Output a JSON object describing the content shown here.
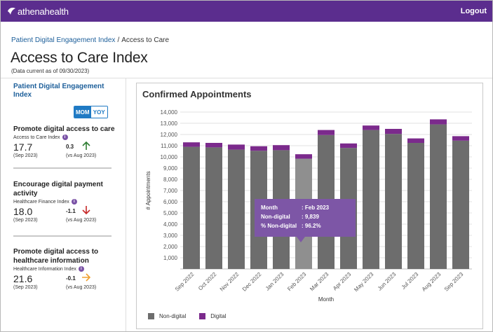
{
  "header": {
    "brand": "athenahealth",
    "logout_label": "Logout"
  },
  "breadcrumb": {
    "parent": "Patient Digital Engagement Index",
    "separator": "/",
    "current": "Access to Care"
  },
  "page": {
    "title": "Access to Care Index",
    "subtitle": "(Data current as of 09/30/2023)"
  },
  "sidebar": {
    "title": "Patient Digital Engagement Index",
    "toggle": {
      "mom": "MOM",
      "yoy": "YOY",
      "selected": "MOM"
    },
    "metrics": [
      {
        "title": "Promote digital access to care",
        "index_label": "Access to Care Index",
        "value": "17.7",
        "period": "(Sep 2023)",
        "delta": "0.3",
        "vs": "(vs Aug 2023)",
        "direction": "up",
        "arrow_color": "#2e7d32"
      },
      {
        "title": "Encourage digital payment activity",
        "index_label": "Healthcare Finance Index",
        "value": "18.0",
        "period": "(Sep 2023)",
        "delta": "-1.1",
        "vs": "(vs Aug 2023)",
        "direction": "down",
        "arrow_color": "#c62828"
      },
      {
        "title": "Promote digital access to healthcare information",
        "index_label": "Healthcare Information Index",
        "value": "21.6",
        "period": "(Sep 2023)",
        "delta": "-0.1",
        "vs": "(vs Aug 2023)",
        "direction": "right",
        "arrow_color": "#f0a030"
      }
    ]
  },
  "chart": {
    "title": "Confirmed Appointments",
    "legend": [
      "Non-digital",
      "Digital"
    ],
    "tooltip": {
      "rows": [
        {
          "key": "Month",
          "value": ": Feb 2023"
        },
        {
          "key": "Non-digital",
          "value": ": 9,839"
        },
        {
          "key": "% Non-digital",
          "value": ": 96.2%"
        }
      ]
    }
  },
  "chart_data": {
    "type": "bar",
    "stacked": true,
    "xlabel": "Month",
    "ylabel": "# Appointments",
    "ylim": [
      0,
      14000
    ],
    "yticks": [
      "1,000",
      "2,000",
      "3,000",
      "4,000",
      "5,000",
      "6,000",
      "7,000",
      "8,000",
      "9,000",
      "10,000",
      "11,000",
      "12,000",
      "13,000",
      "14,000"
    ],
    "categories": [
      "Sep 2022",
      "Oct 2022",
      "Nov 2022",
      "Dec 2022",
      "Jan 2023",
      "Feb 2023",
      "Mar 2023",
      "Apr 2023",
      "May 2023",
      "Jun 2023",
      "Jul 2023",
      "Aug 2023",
      "Sep 2023"
    ],
    "series": [
      {
        "name": "Non-digital",
        "color": "#6d6d6d",
        "values": [
          10900,
          10850,
          10650,
          10550,
          10600,
          9839,
          11950,
          10800,
          12400,
          12050,
          11250,
          12900,
          11450
        ]
      },
      {
        "name": "Digital",
        "color": "#7b2a8c",
        "values": [
          400,
          400,
          450,
          400,
          450,
          400,
          450,
          400,
          400,
          450,
          400,
          450,
          400
        ]
      }
    ],
    "highlighted_category": "Feb 2023",
    "highlight_color": "#8f8f8f",
    "grid": true,
    "legend_position": "bottom-left"
  }
}
